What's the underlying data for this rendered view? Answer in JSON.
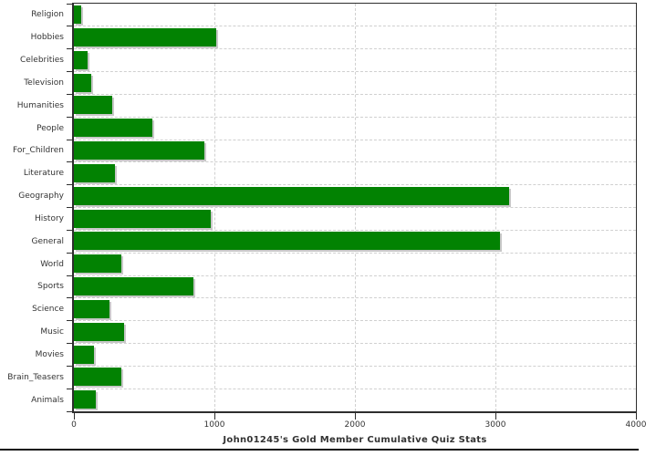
{
  "chart_data": {
    "type": "bar",
    "orientation": "horizontal",
    "title": "John01245's Gold Member Cumulative Quiz Stats",
    "categories": [
      "Religion",
      "Hobbies",
      "Celebrities",
      "Television",
      "Humanities",
      "People",
      "For_Children",
      "Literature",
      "Geography",
      "History",
      "General",
      "World",
      "Sports",
      "Science",
      "Music",
      "Movies",
      "Brain_Teasers",
      "Animals"
    ],
    "values": [
      55,
      1010,
      95,
      125,
      275,
      560,
      930,
      295,
      3100,
      975,
      3030,
      340,
      850,
      250,
      355,
      140,
      335,
      155
    ],
    "xlabel": "",
    "ylabel": "",
    "xlim": [
      0,
      4000
    ],
    "x_ticks": [
      0,
      1000,
      2000,
      3000,
      4000
    ],
    "grid": "dashed",
    "legend": "none",
    "colors": {
      "bar": "#028202",
      "bar_shadow": "#c8c8c8",
      "grid": "#d0d0d0",
      "axis": "#2e2e2e",
      "text": "#333333",
      "background": "#ffffff"
    }
  }
}
